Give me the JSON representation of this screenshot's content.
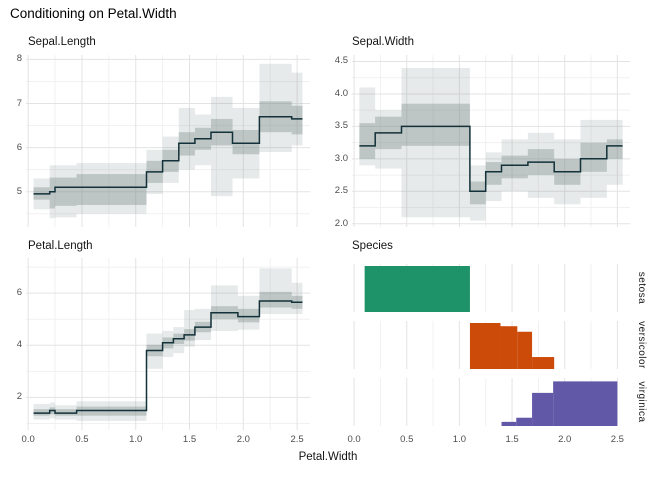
{
  "title": "Conditioning on Petal.Width",
  "x_axis": {
    "title": "Petal.Width",
    "tick_values": [
      0,
      0.5,
      1.0,
      1.5,
      2.0,
      2.5
    ],
    "tick_labels": [
      "0.0",
      "0.5",
      "1.0",
      "1.5",
      "2.0",
      "2.5"
    ],
    "minor_values": [
      0.25,
      0.75,
      1.25,
      1.75,
      2.25
    ],
    "range": [
      0.0,
      2.5
    ]
  },
  "colors": {
    "band_base": "#788a8a",
    "band_outer_hex": "#e6eae9",
    "band_inner_hex": "#c2cccb",
    "step_line": "#123138",
    "grid_major": "#e3e3e3",
    "grid_minor": "#f1f1f1",
    "setosa": "#1e9268",
    "versicolor": "#cc4b08",
    "virginica": "#6159a8",
    "axis_text": "#4d4d4d",
    "title_text": "#000000"
  },
  "chart_data": [
    {
      "type": "step-band",
      "title": "Sepal.Length",
      "ylim": [
        4.2,
        8.1
      ],
      "yticks": [
        5,
        6,
        7,
        8
      ],
      "ytick_labels": [
        "5",
        "6",
        "7",
        "8"
      ],
      "yminor": [
        4.5,
        5.5,
        6.5,
        7.5
      ],
      "segments": [
        {
          "x": [
            0.05,
            0.2
          ],
          "y": 4.95,
          "inner": [
            4.82,
            5.1
          ],
          "outer": [
            4.6,
            5.3
          ]
        },
        {
          "x": [
            0.2,
            0.25
          ],
          "y": 5.0,
          "inner": [
            4.62,
            5.32
          ],
          "outer": [
            4.4,
            5.6
          ]
        },
        {
          "x": [
            0.25,
            0.45
          ],
          "y": 5.1,
          "inner": [
            4.68,
            5.32
          ],
          "outer": [
            4.42,
            5.6
          ]
        },
        {
          "x": [
            0.45,
            1.1
          ],
          "y": 5.1,
          "inner": [
            4.7,
            5.4
          ],
          "outer": [
            4.5,
            5.65
          ]
        },
        {
          "x": [
            1.1,
            1.25
          ],
          "y": 5.45,
          "inner": [
            5.2,
            5.7
          ],
          "outer": [
            4.95,
            5.95
          ]
        },
        {
          "x": [
            1.25,
            1.4
          ],
          "y": 5.7,
          "inner": [
            5.45,
            5.95
          ],
          "outer": [
            5.2,
            6.25
          ]
        },
        {
          "x": [
            1.4,
            1.55
          ],
          "y": 6.1,
          "inner": [
            5.82,
            6.35
          ],
          "outer": [
            5.5,
            6.9
          ]
        },
        {
          "x": [
            1.55,
            1.7
          ],
          "y": 6.2,
          "inner": [
            5.95,
            6.45
          ],
          "outer": [
            5.6,
            6.75
          ]
        },
        {
          "x": [
            1.7,
            1.9
          ],
          "y": 6.35,
          "inner": [
            6.05,
            6.65
          ],
          "outer": [
            4.9,
            7.15
          ]
        },
        {
          "x": [
            1.9,
            2.15
          ],
          "y": 6.1,
          "inner": [
            5.85,
            6.4
          ],
          "outer": [
            5.3,
            6.9
          ]
        },
        {
          "x": [
            2.15,
            2.45
          ],
          "y": 6.7,
          "inner": [
            6.35,
            7.05
          ],
          "outer": [
            5.9,
            7.9
          ]
        },
        {
          "x": [
            2.45,
            2.55
          ],
          "y": 6.65,
          "inner": [
            6.3,
            6.95
          ],
          "outer": [
            6.05,
            7.7
          ]
        }
      ]
    },
    {
      "type": "step-band",
      "title": "Sepal.Width",
      "ylim": [
        1.95,
        4.6
      ],
      "yticks": [
        2.0,
        2.5,
        3.0,
        3.5,
        4.0,
        4.5
      ],
      "ytick_labels": [
        "2.0",
        "2.5",
        "3.0",
        "3.5",
        "4.0",
        "4.5"
      ],
      "yminor": [
        2.25,
        2.75,
        3.25,
        3.75,
        4.25
      ],
      "segments": [
        {
          "x": [
            0.05,
            0.2
          ],
          "y": 3.2,
          "inner": [
            3.0,
            3.55
          ],
          "outer": [
            2.9,
            4.1
          ]
        },
        {
          "x": [
            0.2,
            0.45
          ],
          "y": 3.4,
          "inner": [
            3.15,
            3.65
          ],
          "outer": [
            2.85,
            3.75
          ]
        },
        {
          "x": [
            0.45,
            1.1
          ],
          "y": 3.5,
          "inner": [
            3.2,
            3.85
          ],
          "outer": [
            2.1,
            4.4
          ]
        },
        {
          "x": [
            1.1,
            1.25
          ],
          "y": 2.5,
          "inner": [
            2.3,
            2.65
          ],
          "outer": [
            2.05,
            2.9
          ]
        },
        {
          "x": [
            1.25,
            1.4
          ],
          "y": 2.8,
          "inner": [
            2.6,
            2.95
          ],
          "outer": [
            2.35,
            3.1
          ]
        },
        {
          "x": [
            1.4,
            1.65
          ],
          "y": 2.9,
          "inner": [
            2.7,
            3.05
          ],
          "outer": [
            2.5,
            3.3
          ]
        },
        {
          "x": [
            1.65,
            1.9
          ],
          "y": 2.95,
          "inner": [
            2.75,
            3.15
          ],
          "outer": [
            2.4,
            3.4
          ]
        },
        {
          "x": [
            1.9,
            2.15
          ],
          "y": 2.8,
          "inner": [
            2.6,
            3.0
          ],
          "outer": [
            2.3,
            3.3
          ]
        },
        {
          "x": [
            2.15,
            2.4
          ],
          "y": 3.0,
          "inner": [
            2.8,
            3.25
          ],
          "outer": [
            2.4,
            3.6
          ]
        },
        {
          "x": [
            2.4,
            2.55
          ],
          "y": 3.2,
          "inner": [
            3.0,
            3.3
          ],
          "outer": [
            2.6,
            3.6
          ]
        }
      ]
    },
    {
      "type": "step-band",
      "title": "Petal.Length",
      "ylim": [
        0.75,
        7.35
      ],
      "yticks": [
        2,
        4,
        6
      ],
      "ytick_labels": [
        "2",
        "4",
        "6"
      ],
      "yminor": [
        1,
        3,
        5,
        7
      ],
      "segments": [
        {
          "x": [
            0.05,
            0.2
          ],
          "y": 1.4,
          "inner": [
            1.3,
            1.55
          ],
          "outer": [
            1.15,
            1.75
          ]
        },
        {
          "x": [
            0.2,
            0.25
          ],
          "y": 1.5,
          "inner": [
            1.35,
            1.62
          ],
          "outer": [
            1.2,
            1.8
          ]
        },
        {
          "x": [
            0.25,
            0.45
          ],
          "y": 1.4,
          "inner": [
            1.3,
            1.55
          ],
          "outer": [
            1.15,
            1.7
          ]
        },
        {
          "x": [
            0.45,
            1.1
          ],
          "y": 1.5,
          "inner": [
            1.3,
            1.65
          ],
          "outer": [
            1.1,
            1.85
          ]
        },
        {
          "x": [
            1.1,
            1.25
          ],
          "y": 3.8,
          "inner": [
            3.58,
            4.02
          ],
          "outer": [
            3.1,
            4.45
          ]
        },
        {
          "x": [
            1.25,
            1.35
          ],
          "y": 4.1,
          "inner": [
            3.88,
            4.3
          ],
          "outer": [
            3.55,
            4.55
          ]
        },
        {
          "x": [
            1.35,
            1.45
          ],
          "y": 4.25,
          "inner": [
            4.05,
            4.45
          ],
          "outer": [
            3.7,
            4.7
          ]
        },
        {
          "x": [
            1.45,
            1.55
          ],
          "y": 4.4,
          "inner": [
            4.18,
            4.62
          ],
          "outer": [
            3.95,
            5.35
          ]
        },
        {
          "x": [
            1.55,
            1.7
          ],
          "y": 4.7,
          "inner": [
            4.5,
            4.9
          ],
          "outer": [
            4.2,
            5.4
          ]
        },
        {
          "x": [
            1.7,
            1.95
          ],
          "y": 5.25,
          "inner": [
            5.0,
            5.5
          ],
          "outer": [
            4.55,
            6.3
          ]
        },
        {
          "x": [
            1.95,
            2.15
          ],
          "y": 5.1,
          "inner": [
            4.88,
            5.4
          ],
          "outer": [
            4.6,
            5.9
          ]
        },
        {
          "x": [
            2.15,
            2.45
          ],
          "y": 5.7,
          "inner": [
            5.45,
            6.05
          ],
          "outer": [
            5.2,
            6.95
          ]
        },
        {
          "x": [
            2.45,
            2.55
          ],
          "y": 5.65,
          "inner": [
            5.4,
            5.9
          ],
          "outer": [
            5.2,
            6.4
          ]
        }
      ]
    },
    {
      "type": "histogram",
      "title": "Species",
      "facets": [
        {
          "label": "setosa",
          "color": "#1e9268",
          "bars": [
            {
              "x": [
                0.1,
                1.1
              ],
              "height": 1.0
            }
          ]
        },
        {
          "label": "versicolor",
          "color": "#cc4b08",
          "bars": [
            {
              "x": [
                1.1,
                1.39
              ],
              "height": 1.0
            },
            {
              "x": [
                1.39,
                1.55
              ],
              "height": 0.93
            },
            {
              "x": [
                1.55,
                1.69
              ],
              "height": 0.81
            },
            {
              "x": [
                1.69,
                1.9
              ],
              "height": 0.26
            }
          ]
        },
        {
          "label": "virginica",
          "color": "#6159a8",
          "bars": [
            {
              "x": [
                1.4,
                1.54
              ],
              "height": 0.09
            },
            {
              "x": [
                1.54,
                1.69
              ],
              "height": 0.18
            },
            {
              "x": [
                1.69,
                1.89
              ],
              "height": 0.72
            },
            {
              "x": [
                1.89,
                2.5
              ],
              "height": 0.97
            }
          ]
        }
      ]
    }
  ]
}
